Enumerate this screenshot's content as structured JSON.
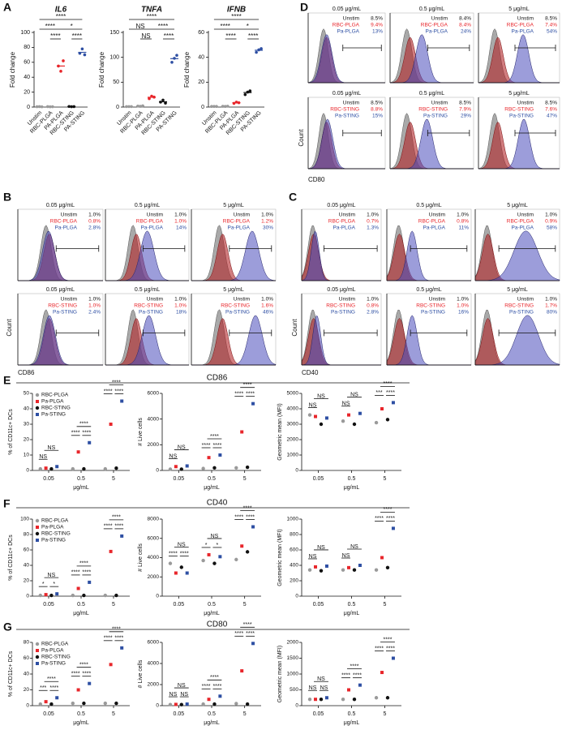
{
  "panel_labels": [
    "A",
    "B",
    "C",
    "D",
    "E",
    "F",
    "G"
  ],
  "chart_data": [
    {
      "type": "strip",
      "title": "IL6",
      "ylabel": "Fold change",
      "categories": [
        "Unstim",
        "RBC-PLGA",
        "PA-PLGA",
        "RBC-STING",
        "PA-STING"
      ],
      "colors": [
        "#9a9a9a",
        "#9a9a9a",
        "#e8262b",
        "#111111",
        "#2e4fa3"
      ],
      "values": [
        [
          0.5,
          0.6,
          0.4
        ],
        [
          0.6,
          0.4,
          0.5
        ],
        [
          55,
          48,
          62
        ],
        [
          0.8,
          0.5,
          0.6
        ],
        [
          72,
          78,
          70
        ]
      ],
      "ylim": [
        0,
        100
      ],
      "yticks": [
        0,
        20,
        40,
        60,
        80,
        100
      ],
      "annotations": [
        "****",
        "****",
        "*",
        "****",
        "****"
      ]
    },
    {
      "type": "strip",
      "title": "TNFA",
      "ylabel": "Fold change",
      "categories": [
        "Unstim",
        "RBC-PLGA",
        "PA-PLGA",
        "RBC-STING",
        "PA-STING"
      ],
      "colors": [
        "#9a9a9a",
        "#9a9a9a",
        "#e8262b",
        "#111111",
        "#2e4fa3"
      ],
      "values": [
        [
          1,
          1,
          1
        ],
        [
          2,
          1.5,
          2.5
        ],
        [
          17,
          22,
          20
        ],
        [
          10,
          14,
          8
        ],
        [
          90,
          98,
          104
        ]
      ],
      "ylim": [
        0,
        150
      ],
      "yticks": [
        0,
        50,
        100,
        150
      ],
      "annotations": [
        "****",
        "NS",
        "****",
        "NS",
        "****"
      ]
    },
    {
      "type": "strip",
      "title": "IFNB",
      "ylabel": "Fold change",
      "categories": [
        "Unstim",
        "RBC-PLGA",
        "PA-PLGA",
        "RBC-STING",
        "PA-STING"
      ],
      "colors": [
        "#9a9a9a",
        "#9a9a9a",
        "#e8262b",
        "#111111",
        "#2e4fa3"
      ],
      "values": [
        [
          0.5,
          0.5,
          0.5
        ],
        [
          0.6,
          0.5,
          0.7
        ],
        [
          3,
          4,
          3.5
        ],
        [
          10,
          12,
          13
        ],
        [
          44,
          46,
          47
        ]
      ],
      "ylim": [
        0,
        60
      ],
      "yticks": [
        0,
        20,
        40,
        60
      ],
      "annotations": [
        "****",
        "****",
        "*",
        "****",
        "****"
      ]
    },
    {
      "type": "flow",
      "xlabel": "CD86",
      "ylabel": "Count",
      "fills": [
        "#8c8c8c",
        "#b3262a",
        "#4a4dbb"
      ],
      "text_colors": [
        "#111111",
        "#e8262b",
        "#2e4fa3"
      ],
      "panels": [
        {
          "title": "0.05 μg/mL",
          "gates": [
            {
              "name": "Unstim",
              "label": "1.0%"
            },
            {
              "name": "RBC-PLGA",
              "label": "0.8%"
            },
            {
              "name": "Pa-PLGA",
              "label": "2.8%"
            }
          ]
        },
        {
          "title": "0.5 μg/mL",
          "gates": [
            {
              "name": "Unstim",
              "label": "1.0%"
            },
            {
              "name": "RBC-PLGA",
              "label": "1.0%"
            },
            {
              "name": "Pa-PLGA",
              "label": "14%"
            }
          ]
        },
        {
          "title": "5 μg/mL",
          "gates": [
            {
              "name": "Unstim",
              "label": "1.0%"
            },
            {
              "name": "RBC-PLGA",
              "label": "1.2%"
            },
            {
              "name": "Pa-PLGA",
              "label": "30%"
            }
          ]
        },
        {
          "title": "0.05 μg/mL",
          "gates": [
            {
              "name": "Unstim",
              "label": "1.0%"
            },
            {
              "name": "RBC-STING",
              "label": "1.0%"
            },
            {
              "name": "Pa-STING",
              "label": "2.4%"
            }
          ]
        },
        {
          "title": "0.5 μg/mL",
          "gates": [
            {
              "name": "Unstim",
              "label": "1.0%"
            },
            {
              "name": "RBC-STING",
              "label": "1.0%"
            },
            {
              "name": "Pa-STING",
              "label": "18%"
            }
          ]
        },
        {
          "title": "5 μg/mL",
          "gates": [
            {
              "name": "Unstim",
              "label": "1.0%"
            },
            {
              "name": "RBC-STING",
              "label": "1.6%"
            },
            {
              "name": "Pa-STING",
              "label": "46%"
            }
          ]
        }
      ]
    },
    {
      "type": "flow",
      "xlabel": "CD40",
      "ylabel": "Count",
      "fills": [
        "#8c8c8c",
        "#b3262a",
        "#4a4dbb"
      ],
      "text_colors": [
        "#111111",
        "#e8262b",
        "#2e4fa3"
      ],
      "panels": [
        {
          "title": "0.05 μg/mL",
          "gates": [
            {
              "name": "Unstim",
              "label": "1.0%"
            },
            {
              "name": "RBC-PLGA",
              "label": "0.7%"
            },
            {
              "name": "Pa-PLGA",
              "label": "1.3%"
            }
          ]
        },
        {
          "title": "0.5 μg/mL",
          "gates": [
            {
              "name": "Unstim",
              "label": "1.0%"
            },
            {
              "name": "RBC-PLGA",
              "label": "0.8%"
            },
            {
              "name": "Pa-PLGA",
              "label": "11%"
            }
          ]
        },
        {
          "title": "5 μg/mL",
          "gates": [
            {
              "name": "Unstim",
              "label": "1.0%"
            },
            {
              "name": "RBC-PLGA",
              "label": "0.9%"
            },
            {
              "name": "Pa-PLGA",
              "label": "58%"
            }
          ]
        },
        {
          "title": "0.05 μg/mL",
          "gates": [
            {
              "name": "Unstim",
              "label": "1.0%"
            },
            {
              "name": "RBC-STING",
              "label": "0.8%"
            },
            {
              "name": "Pa-STING",
              "label": "2.8%"
            }
          ]
        },
        {
          "title": "0.5 μg/mL",
          "gates": [
            {
              "name": "Unstim",
              "label": "1.0%"
            },
            {
              "name": "RBC-STING",
              "label": "1.0%"
            },
            {
              "name": "Pa-STING",
              "label": "16%"
            }
          ]
        },
        {
          "title": "5 μg/mL",
          "gates": [
            {
              "name": "Unstim",
              "label": "1.0%"
            },
            {
              "name": "RBC-STING",
              "label": "1.7%"
            },
            {
              "name": "Pa-STING",
              "label": "80%"
            }
          ]
        }
      ]
    },
    {
      "type": "flow",
      "xlabel": "CD80",
      "ylabel": "Count",
      "fills": [
        "#8c8c8c",
        "#b3262a",
        "#4a4dbb"
      ],
      "text_colors": [
        "#111111",
        "#e8262b",
        "#2e4fa3"
      ],
      "panels": [
        {
          "title": "0.05 μg/mL",
          "gates": [
            {
              "name": "Unstim",
              "label": "8.5%"
            },
            {
              "name": "RBC-PLGA",
              "label": "9.4%"
            },
            {
              "name": "Pa-PLGA",
              "label": "13%"
            }
          ]
        },
        {
          "title": "0.5 μg/mL",
          "gates": [
            {
              "name": "Unstim",
              "label": "8.4%"
            },
            {
              "name": "RBC-PLGA",
              "label": "8.4%"
            },
            {
              "name": "Pa-PLGA",
              "label": "24%"
            }
          ]
        },
        {
          "title": "5 μg/mL",
          "gates": [
            {
              "name": "Unstim",
              "label": "8.5%"
            },
            {
              "name": "RBC-PLGA",
              "label": "7.4%"
            },
            {
              "name": "Pa-PLGA",
              "label": "54%"
            }
          ]
        },
        {
          "title": "0.05 μg/mL",
          "gates": [
            {
              "name": "Unstim",
              "label": "8.5%"
            },
            {
              "name": "RBC-STING",
              "label": "8.8%"
            },
            {
              "name": "Pa-STING",
              "label": "15%"
            }
          ]
        },
        {
          "title": "0.5 μg/mL",
          "gates": [
            {
              "name": "Unstim",
              "label": "8.5%"
            },
            {
              "name": "RBC-STING",
              "label": "7.9%"
            },
            {
              "name": "Pa-STING",
              "label": "29%"
            }
          ]
        },
        {
          "title": "5 μg/mL",
          "gates": [
            {
              "name": "Unstim",
              "label": "8.5%"
            },
            {
              "name": "RBC-STING",
              "label": "7.6%"
            },
            {
              "name": "Pa-STING",
              "label": "47%"
            }
          ]
        }
      ]
    },
    {
      "type": "dot",
      "ylabel": "% of CD11c+ DCs",
      "xlabel": "μg/mL",
      "categories": [
        "0.05",
        "0.5",
        "5"
      ],
      "ylim": [
        0,
        50
      ],
      "yticks": [
        0,
        10,
        20,
        30,
        40,
        50
      ],
      "series": [
        {
          "name": "RBC-PLGA",
          "color": "#9a9a9a",
          "values": [
            1,
            1,
            1
          ]
        },
        {
          "name": "Pa-PLGA",
          "color": "#e8262b",
          "values": [
            1.5,
            12,
            30
          ]
        },
        {
          "name": "RBC-STING",
          "color": "#111111",
          "values": [
            1,
            1,
            1.5
          ]
        },
        {
          "name": "Pa-STING",
          "color": "#2e4fa3",
          "values": [
            2.5,
            18,
            45
          ]
        }
      ],
      "annotations": [
        "NS",
        "NS",
        "****",
        "****",
        "****",
        "****",
        "****",
        "****"
      ]
    },
    {
      "type": "dot",
      "title": "CD86",
      "ylabel": "# Live cells",
      "xlabel": "μg/mL",
      "categories": [
        "0.05",
        "0.5",
        "5"
      ],
      "ylim": [
        0,
        6000
      ],
      "yticks": [
        0,
        2000,
        4000,
        6000
      ],
      "series": [
        {
          "color": "#9a9a9a",
          "values": [
            100,
            150,
            200
          ]
        },
        {
          "color": "#e8262b",
          "values": [
            300,
            1000,
            3000
          ]
        },
        {
          "color": "#111111",
          "values": [
            100,
            200,
            250
          ]
        },
        {
          "color": "#2e4fa3",
          "values": [
            350,
            1200,
            5200
          ]
        }
      ],
      "annotations": [
        "NS",
        "NS",
        "****",
        "****",
        "****",
        "****",
        "****",
        "****"
      ]
    },
    {
      "type": "dot",
      "ylabel": "Geometric mean (MFI)",
      "xlabel": "μg/mL",
      "categories": [
        "0.05",
        "0.5",
        "5"
      ],
      "ylim": [
        0,
        5000
      ],
      "yticks": [
        0,
        1000,
        2000,
        3000,
        4000,
        5000
      ],
      "series": [
        {
          "color": "#9a9a9a",
          "values": [
            3600,
            3200,
            3100
          ]
        },
        {
          "color": "#e8262b",
          "values": [
            3500,
            3600,
            4000
          ]
        },
        {
          "color": "#111111",
          "values": [
            3000,
            3000,
            3300
          ]
        },
        {
          "color": "#2e4fa3",
          "values": [
            3400,
            3700,
            4400
          ]
        }
      ],
      "annotations": [
        "NS",
        "NS",
        "NS",
        "NS",
        "****",
        "***",
        "****"
      ]
    },
    {
      "type": "dot",
      "ylabel": "% of CD11c+ DCs",
      "xlabel": "μg/mL",
      "categories": [
        "0.05",
        "0.5",
        "5"
      ],
      "ylim": [
        0,
        100
      ],
      "yticks": [
        0,
        20,
        40,
        60,
        80,
        100
      ],
      "series": [
        {
          "name": "RBC-PLGA",
          "color": "#9a9a9a",
          "values": [
            1,
            1,
            1
          ]
        },
        {
          "name": "Pa-PLGA",
          "color": "#e8262b",
          "values": [
            2,
            10,
            58
          ]
        },
        {
          "name": "RBC-STING",
          "color": "#111111",
          "values": [
            1,
            1,
            1
          ]
        },
        {
          "name": "Pa-STING",
          "color": "#2e4fa3",
          "values": [
            3,
            18,
            78
          ]
        }
      ],
      "annotations": [
        "NS",
        "*",
        "*",
        "****",
        "****",
        "****",
        "****",
        "****",
        "****"
      ]
    },
    {
      "type": "dot",
      "title": "CD40",
      "ylabel": "# Live cells",
      "xlabel": "μg/mL",
      "categories": [
        "0.05",
        "0.5",
        "5"
      ],
      "ylim": [
        0,
        8000
      ],
      "yticks": [
        0,
        2000,
        4000,
        6000,
        8000
      ],
      "series": [
        {
          "color": "#9a9a9a",
          "values": [
            3400,
            3700,
            3800
          ]
        },
        {
          "color": "#e8262b",
          "values": [
            2400,
            4300,
            5200
          ]
        },
        {
          "color": "#111111",
          "values": [
            3000,
            3400,
            4600
          ]
        },
        {
          "color": "#2e4fa3",
          "values": [
            2400,
            4100,
            7200
          ]
        }
      ],
      "annotations": [
        "NS",
        "****",
        "****",
        "NS",
        "*",
        "*",
        "****",
        "****",
        "****"
      ]
    },
    {
      "type": "dot",
      "ylabel": "Geometric mean (MFI)",
      "xlabel": "μg/mL",
      "categories": [
        "0.05",
        "0.5",
        "5"
      ],
      "ylim": [
        0,
        1000
      ],
      "yticks": [
        0,
        200,
        400,
        600,
        800,
        1000
      ],
      "series": [
        {
          "color": "#9a9a9a",
          "values": [
            340,
            340,
            340
          ]
        },
        {
          "color": "#e8262b",
          "values": [
            380,
            370,
            500
          ]
        },
        {
          "color": "#111111",
          "values": [
            330,
            340,
            370
          ]
        },
        {
          "color": "#2e4fa3",
          "values": [
            390,
            400,
            880
          ]
        }
      ],
      "annotations": [
        "NS",
        "NS",
        "NS",
        "NS",
        "****",
        "****",
        "****"
      ]
    },
    {
      "type": "dot",
      "ylabel": "% of CD11c+ DCs",
      "xlabel": "μg/mL",
      "categories": [
        "0.05",
        "0.5",
        "5"
      ],
      "ylim": [
        0,
        80
      ],
      "yticks": [
        0,
        20,
        40,
        60,
        80
      ],
      "series": [
        {
          "name": "RBC-PLGA",
          "color": "#9a9a9a",
          "values": [
            2,
            3,
            3
          ]
        },
        {
          "name": "Pa-PLGA",
          "color": "#e8262b",
          "values": [
            5,
            20,
            52
          ]
        },
        {
          "name": "RBC-STING",
          "color": "#111111",
          "values": [
            2,
            3,
            3
          ]
        },
        {
          "name": "Pa-STING",
          "color": "#2e4fa3",
          "values": [
            10,
            28,
            73
          ]
        }
      ],
      "annotations": [
        "****",
        "***",
        "****",
        "****",
        "****",
        "****",
        "****",
        "****",
        "****"
      ]
    },
    {
      "type": "dot",
      "title": "CD80",
      "ylabel": "# Live cells",
      "xlabel": "μg/mL",
      "categories": [
        "0.05",
        "0.5",
        "5"
      ],
      "ylim": [
        0,
        6000
      ],
      "yticks": [
        0,
        2000,
        4000,
        6000
      ],
      "series": [
        {
          "color": "#9a9a9a",
          "values": [
            100,
            150,
            200
          ]
        },
        {
          "color": "#e8262b",
          "values": [
            120,
            600,
            3300
          ]
        },
        {
          "color": "#111111",
          "values": [
            100,
            150,
            150
          ]
        },
        {
          "color": "#2e4fa3",
          "values": [
            150,
            900,
            5900
          ]
        }
      ],
      "annotations": [
        "NS",
        "NS",
        "NS",
        "****",
        "****",
        "****",
        "****",
        "****",
        "****"
      ]
    },
    {
      "type": "dot",
      "ylabel": "Geometric mean (MFI)",
      "xlabel": "μg/mL",
      "categories": [
        "0.05",
        "0.5",
        "5"
      ],
      "ylim": [
        0,
        2000
      ],
      "yticks": [
        0,
        500,
        1000,
        1500,
        2000
      ],
      "series": [
        {
          "color": "#9a9a9a",
          "values": [
            200,
            200,
            250
          ]
        },
        {
          "color": "#e8262b",
          "values": [
            200,
            500,
            1050
          ]
        },
        {
          "color": "#111111",
          "values": [
            200,
            200,
            250
          ]
        },
        {
          "color": "#2e4fa3",
          "values": [
            250,
            650,
            1500
          ]
        }
      ],
      "annotations": [
        "NS",
        "NS",
        "NS",
        "****",
        "****",
        "****",
        "****",
        "****",
        "****"
      ]
    }
  ]
}
